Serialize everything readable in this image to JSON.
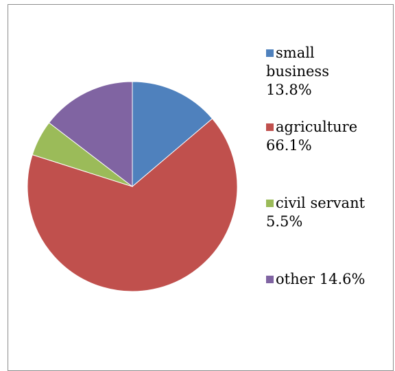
{
  "chart_data": {
    "type": "pie",
    "title": "",
    "slices": [
      {
        "label_lines": [
          "small",
          "business",
          "13.8%"
        ],
        "name": "small business",
        "value": 13.8,
        "color": "#4f81bd"
      },
      {
        "label_lines": [
          "agriculture",
          "66.1%"
        ],
        "name": "agriculture",
        "value": 66.1,
        "color": "#c0504d"
      },
      {
        "label_lines": [
          "civil servant",
          "5.5%"
        ],
        "name": "civil servant",
        "value": 5.5,
        "color": "#9bbb59"
      },
      {
        "label_lines": [
          "other 14.6%"
        ],
        "name": "other",
        "value": 14.6,
        "color": "#8064a2"
      }
    ],
    "start_angle": "12 o'clock",
    "direction": "clockwise",
    "legend_position": "right"
  }
}
